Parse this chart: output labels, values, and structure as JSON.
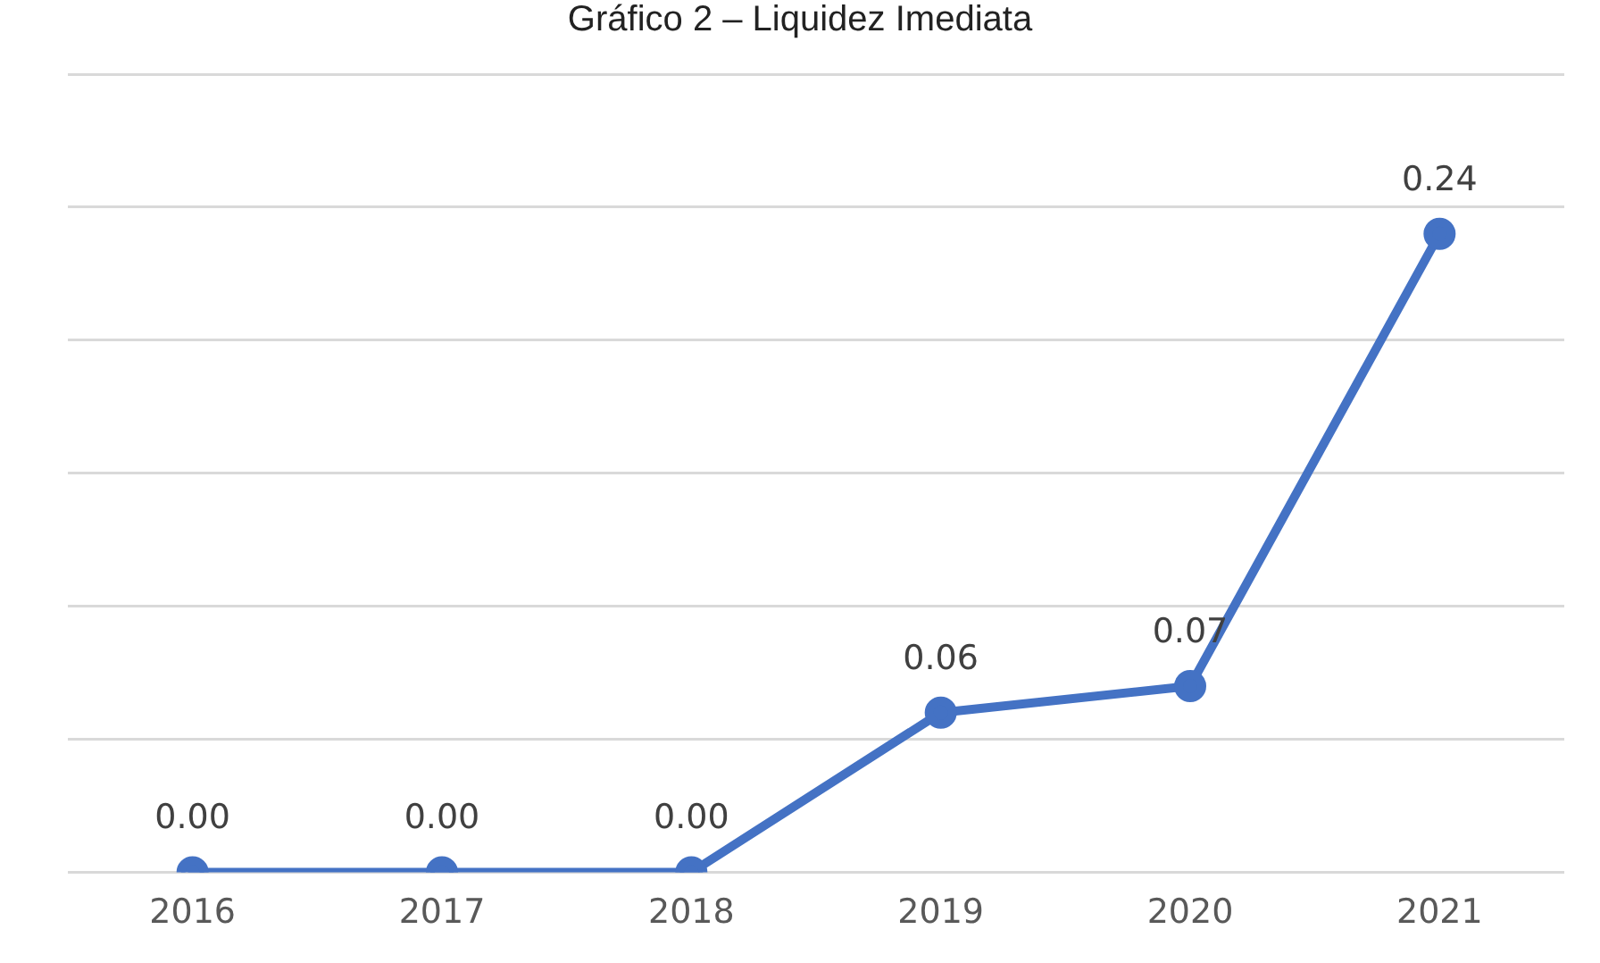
{
  "chart_data": {
    "type": "line",
    "title": "Gráfico 2 – Liquidez Imediata",
    "categories": [
      "2016",
      "2017",
      "2018",
      "2019",
      "2020",
      "2021"
    ],
    "series": [
      {
        "color": "#4472c4",
        "values": [
          0,
          0,
          0,
          0.06,
          0.07,
          0.24
        ],
        "value_labels": [
          "0.00",
          "0.00",
          "0.00",
          "0.06",
          "0.07",
          "0.24"
        ]
      }
    ],
    "ylim": [
      0,
      0.3
    ],
    "yticks": [
      {
        "value": 0,
        "label": null
      },
      {
        "value": 0.05,
        "label": null
      },
      {
        "value": 0.1,
        "label": null
      },
      {
        "value": 0.15,
        "label": null
      },
      {
        "value": 0.2,
        "label": null
      },
      {
        "value": 0.25,
        "label": null
      },
      {
        "value": 0.3,
        "label": null
      }
    ],
    "tick_labels": "x",
    "grid": "y",
    "legend": false,
    "marker": "circle",
    "line_style": "solid"
  }
}
